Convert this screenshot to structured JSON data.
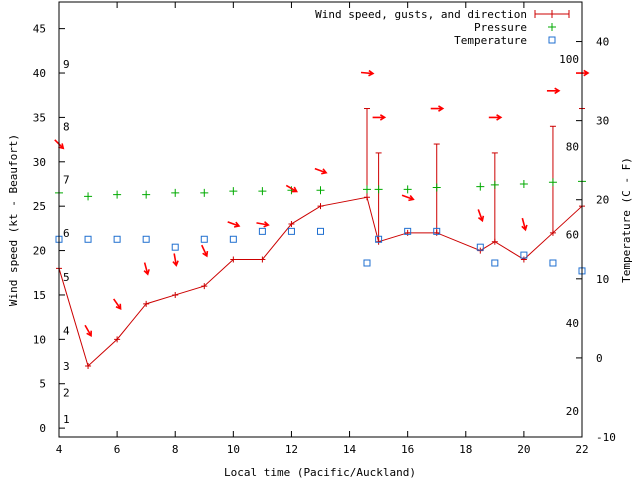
{
  "chart_data": {
    "type": "line",
    "title": "",
    "xlabel": "Local time (Pacific/Auckland)",
    "ylabel_left": "Wind speed (kt - Beaufort)",
    "ylabel_right": "Temperature (C - F)",
    "xlim": [
      4,
      22
    ],
    "ylim_left": [
      -1,
      48
    ],
    "ylim_right_c": [
      -10,
      45
    ],
    "x_ticks": [
      4,
      6,
      8,
      10,
      12,
      14,
      16,
      18,
      20,
      22
    ],
    "y_left_ticks": [
      0,
      5,
      10,
      15,
      20,
      25,
      30,
      35,
      40,
      45
    ],
    "beaufort_ticks": [
      {
        "label": "1",
        "kt": 1
      },
      {
        "label": "2",
        "kt": 4
      },
      {
        "label": "3",
        "kt": 7
      },
      {
        "label": "4",
        "kt": 11
      },
      {
        "label": "5",
        "kt": 17
      },
      {
        "label": "6",
        "kt": 22
      },
      {
        "label": "7",
        "kt": 28
      },
      {
        "label": "8",
        "kt": 34
      },
      {
        "label": "9",
        "kt": 41
      }
    ],
    "y_right_c_ticks": [
      -10,
      0,
      10,
      20,
      30,
      40
    ],
    "y_right_f_ticks": [
      {
        "label": "20",
        "c": -6.7
      },
      {
        "label": "40",
        "c": 4.4
      },
      {
        "label": "60",
        "c": 15.6
      },
      {
        "label": "80",
        "c": 26.7
      },
      {
        "label": "100",
        "c": 37.8
      }
    ],
    "legend": {
      "position": "top-right",
      "entries": [
        "Wind speed, gusts, and direction",
        "Pressure",
        "Temperature"
      ]
    },
    "colors": {
      "wind": "#cc0000",
      "arrow": "#ff0000",
      "pressure": "#00aa00",
      "temperature": "#1f6fd0"
    },
    "wind_speed": {
      "x": [
        4,
        5,
        6,
        7,
        8,
        9,
        10,
        11,
        12,
        13,
        14.6,
        15,
        16,
        17,
        18.5,
        19,
        20,
        21,
        22
      ],
      "values": [
        18,
        7,
        10,
        14,
        15,
        16,
        19,
        19,
        23,
        25,
        26,
        21,
        22,
        22,
        20,
        21,
        19,
        22,
        25
      ]
    },
    "gusts": {
      "x": [
        14.6,
        15,
        17,
        19,
        21,
        22
      ],
      "values": [
        36,
        31,
        32,
        31,
        34,
        36
      ]
    },
    "wind_direction": {
      "x": [
        4,
        5,
        6,
        7,
        8,
        9,
        10,
        11,
        12,
        13,
        14.6,
        15,
        16,
        17,
        18.5,
        19,
        20,
        21,
        22
      ],
      "heading_deg": [
        135,
        150,
        145,
        165,
        170,
        155,
        110,
        100,
        120,
        110,
        95,
        90,
        110,
        90,
        160,
        90,
        165,
        90,
        90
      ],
      "y_kt": [
        32,
        11,
        14,
        18,
        19,
        20,
        23,
        23,
        27,
        29,
        40,
        35,
        26,
        36,
        24,
        35,
        23,
        38,
        40
      ]
    },
    "pressure": {
      "x": [
        4,
        5,
        6,
        7,
        8,
        9,
        10,
        11,
        12,
        13,
        14.6,
        15,
        16,
        17,
        18.5,
        19,
        20,
        21,
        22
      ],
      "values": [
        26.5,
        26.1,
        26.3,
        26.3,
        26.5,
        26.5,
        26.7,
        26.7,
        26.8,
        26.8,
        26.9,
        26.9,
        26.9,
        27.1,
        27.2,
        27.4,
        27.5,
        27.7,
        27.8
      ]
    },
    "temperature_c": {
      "x": [
        4,
        5,
        6,
        7,
        8,
        9,
        10,
        11,
        12,
        13,
        14.6,
        15,
        16,
        17,
        18.5,
        19,
        20,
        21,
        22
      ],
      "values": [
        15,
        15,
        15,
        15,
        14,
        15,
        15,
        16,
        16,
        16,
        12,
        15,
        16,
        16,
        14,
        12,
        13,
        12,
        11
      ]
    }
  }
}
